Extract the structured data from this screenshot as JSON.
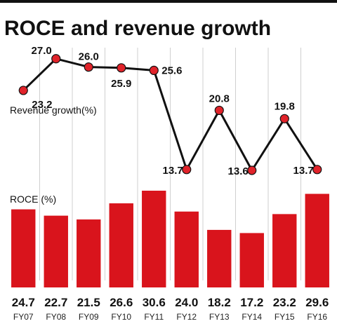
{
  "chart_data": [
    {
      "type": "line",
      "title": "ROCE and revenue growth",
      "label": "Revenue growth(%)",
      "x": [
        "FY07",
        "FY08",
        "FY09",
        "FY10",
        "FY11",
        "FY12",
        "FY13",
        "FY14",
        "FY15",
        "FY16"
      ],
      "values": [
        23.2,
        27.0,
        26.0,
        25.9,
        25.6,
        13.7,
        20.8,
        13.6,
        19.8,
        13.7
      ],
      "value_labels": [
        "23.2",
        "27.0",
        "26.0",
        "25.9",
        "25.6",
        "13.7",
        "20.8",
        "13.6",
        "19.8",
        "13.7"
      ],
      "ylim": [
        12,
        29
      ],
      "grid": true,
      "colors": {
        "marker": "#e0232a",
        "line": "#111111",
        "grid": "#cfcfcf"
      }
    },
    {
      "type": "bar",
      "label": "ROCE (%)",
      "categories": [
        "FY07",
        "FY08",
        "FY09",
        "FY10",
        "FY11",
        "FY12",
        "FY13",
        "FY14",
        "FY15",
        "FY16"
      ],
      "values": [
        24.7,
        22.7,
        21.5,
        26.6,
        30.6,
        24.0,
        18.2,
        17.2,
        23.2,
        29.6
      ],
      "value_labels": [
        "24.7",
        "22.7",
        "21.5",
        "26.6",
        "30.6",
        "24.0",
        "18.2",
        "17.2",
        "23.2",
        "29.6"
      ],
      "ylim": [
        0,
        31
      ],
      "colors": {
        "bar": "#d9141c"
      }
    }
  ]
}
